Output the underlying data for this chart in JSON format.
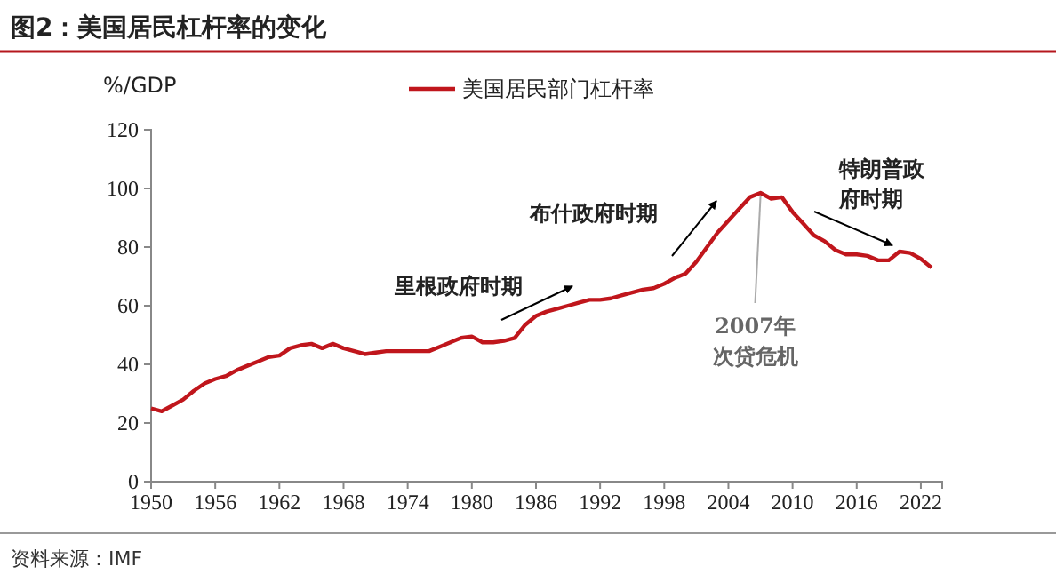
{
  "chart_data": {
    "type": "line",
    "title": "图2：美国居民杠杆率的变化",
    "ylabel": "%/GDP",
    "x": [
      1950,
      1951,
      1952,
      1953,
      1954,
      1955,
      1956,
      1957,
      1958,
      1959,
      1960,
      1961,
      1962,
      1963,
      1964,
      1965,
      1966,
      1967,
      1968,
      1969,
      1970,
      1971,
      1972,
      1973,
      1974,
      1975,
      1976,
      1977,
      1978,
      1979,
      1980,
      1981,
      1982,
      1983,
      1984,
      1985,
      1986,
      1987,
      1988,
      1989,
      1990,
      1991,
      1992,
      1993,
      1994,
      1995,
      1996,
      1997,
      1998,
      1999,
      2000,
      2001,
      2002,
      2003,
      2004,
      2005,
      2006,
      2007,
      2008,
      2009,
      2010,
      2011,
      2012,
      2013,
      2014,
      2015,
      2016,
      2017,
      2018,
      2019,
      2020,
      2021,
      2022,
      2023
    ],
    "series": [
      {
        "name": "美国居民部门杠杆率",
        "color": "#c0161c",
        "values": [
          25,
          24,
          26,
          28,
          31,
          33.5,
          35,
          36,
          38,
          39.5,
          41,
          42.5,
          43,
          45.5,
          46.5,
          47,
          45.5,
          47,
          45.5,
          44.5,
          43.5,
          44,
          44.5,
          44.5,
          44.5,
          44.5,
          44.5,
          46,
          47.5,
          49,
          49.5,
          47.5,
          47.5,
          48,
          49,
          53.5,
          56.5,
          58,
          59,
          60,
          61,
          62,
          62,
          62.5,
          63.5,
          64.5,
          65.5,
          66,
          67.5,
          69.5,
          71,
          75,
          80,
          85,
          89,
          93,
          97,
          98.5,
          96.5,
          97,
          92,
          88,
          84,
          82,
          79,
          77.5,
          77.5,
          77,
          75.5,
          75.5,
          78.5,
          78,
          76,
          73
        ]
      }
    ],
    "xlim": [
      1950,
      2024
    ],
    "xticks": [
      1950,
      1956,
      1962,
      1968,
      1974,
      1980,
      1986,
      1992,
      1998,
      2004,
      2010,
      2016,
      2022
    ],
    "ylim": [
      0,
      120
    ],
    "yticks": [
      0,
      20,
      40,
      60,
      80,
      100,
      120
    ],
    "grid": false,
    "legend": "top",
    "marker": "none",
    "line_style": "solid",
    "annotations": [
      "里根政府时期",
      "布什政府时期",
      "特朗普政府时期",
      {
        "text": "2007年次贷危机",
        "x": 2007,
        "y": 98.5
      },
      "资料来源：IMF"
    ]
  }
}
